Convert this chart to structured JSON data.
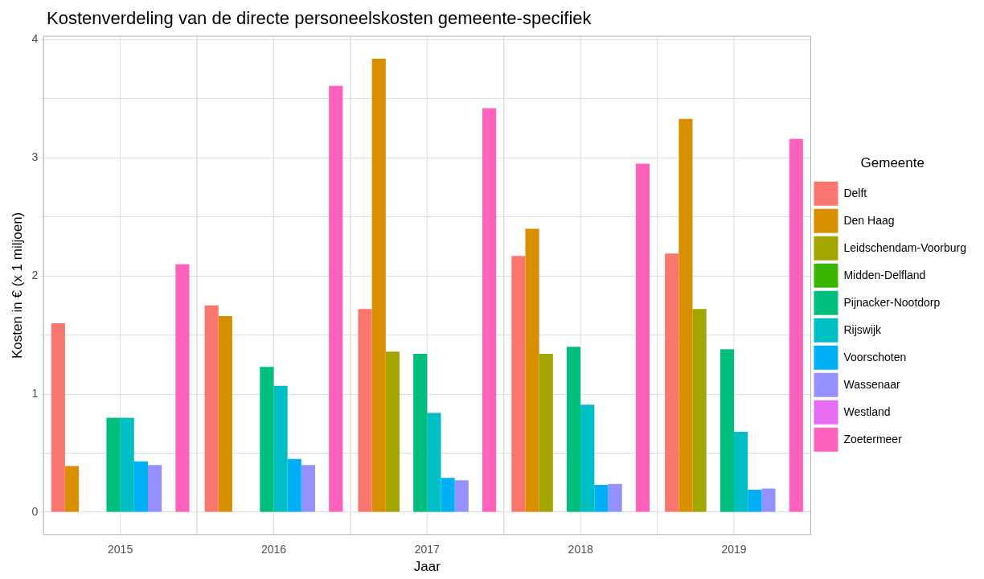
{
  "chart_data": {
    "type": "bar",
    "title": "Kostenverdeling van de directe personeelskosten gemeente-specifiek",
    "xlabel": "Jaar",
    "ylabel": "Kosten in € (x 1 miljoen)",
    "legend_title": "Gemeente",
    "categories": [
      "2015",
      "2016",
      "2017",
      "2018",
      "2019"
    ],
    "series": [
      {
        "name": "Delft",
        "color": "#f8766d",
        "values": [
          1.6,
          1.75,
          1.72,
          2.17,
          2.19
        ]
      },
      {
        "name": "Den Haag",
        "color": "#d89000",
        "values": [
          0.39,
          1.66,
          3.84,
          2.4,
          3.33
        ]
      },
      {
        "name": "Leidschendam-Voorburg",
        "color": "#a3a500",
        "values": [
          null,
          null,
          1.36,
          1.34,
          1.72
        ]
      },
      {
        "name": "Midden-Delfland",
        "color": "#39b600",
        "values": [
          null,
          null,
          null,
          null,
          null
        ]
      },
      {
        "name": "Pijnacker-Nootdorp",
        "color": "#00bf7d",
        "values": [
          0.8,
          1.23,
          1.34,
          1.4,
          1.38
        ]
      },
      {
        "name": "Rijswijk",
        "color": "#00bfc4",
        "values": [
          0.8,
          1.07,
          0.84,
          0.91,
          0.68
        ]
      },
      {
        "name": "Voorschoten",
        "color": "#00b0f6",
        "values": [
          0.43,
          0.45,
          0.29,
          0.23,
          0.19
        ]
      },
      {
        "name": "Wassenaar",
        "color": "#9590ff",
        "values": [
          0.4,
          0.4,
          0.27,
          0.24,
          0.2
        ]
      },
      {
        "name": "Westland",
        "color": "#e76bf3",
        "values": [
          null,
          null,
          null,
          null,
          null
        ]
      },
      {
        "name": "Zoetermeer",
        "color": "#ff62bc",
        "values": [
          2.1,
          3.61,
          3.42,
          2.95,
          3.16
        ]
      }
    ],
    "ylim": [
      -0.19,
      4.03
    ],
    "yticks": [
      0,
      {
        "value": 0.5,
        "label": null
      },
      1,
      {
        "value": 1.5,
        "label": null
      },
      2,
      {
        "value": 2.5,
        "label": null
      },
      3,
      {
        "value": 3.5,
        "label": null
      },
      4
    ],
    "grid": true,
    "legend": "right"
  }
}
